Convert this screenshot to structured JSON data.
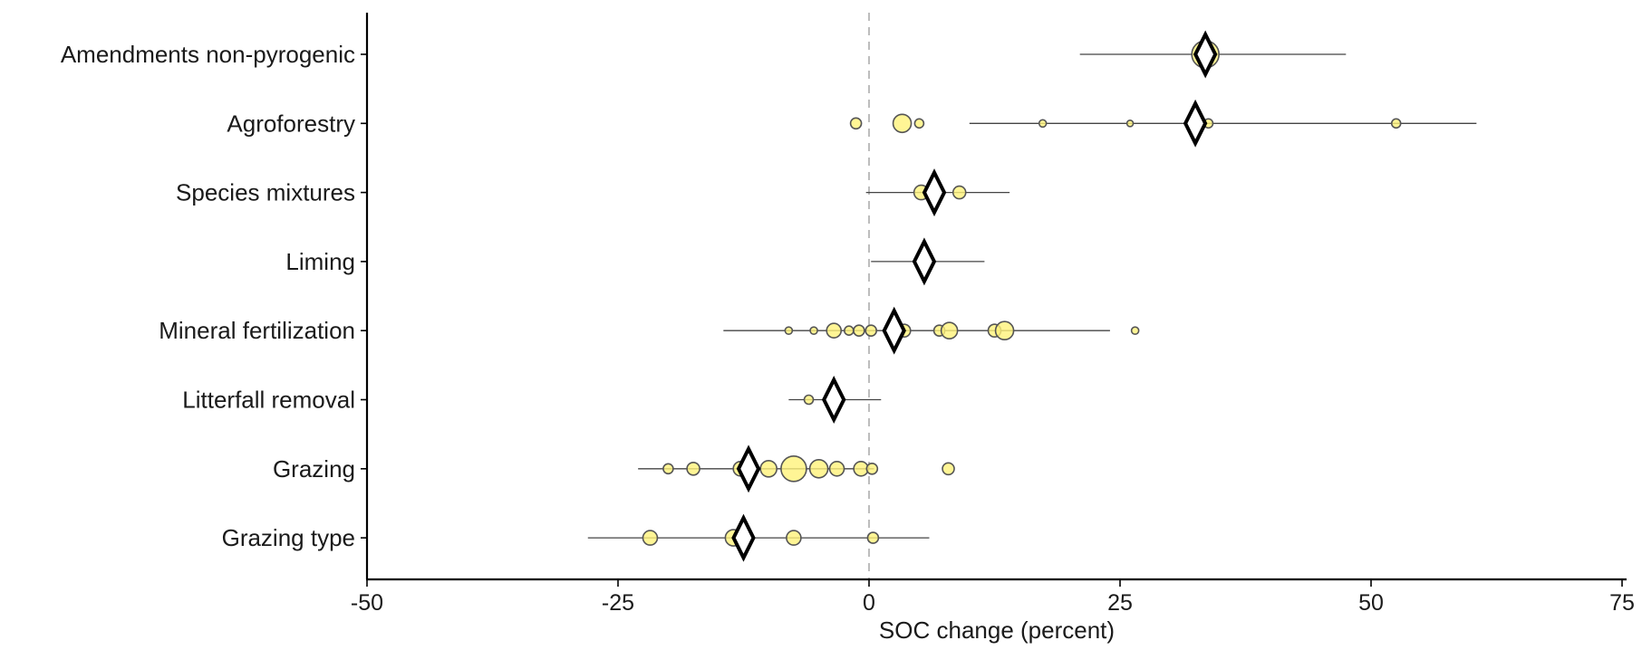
{
  "chart_data": {
    "type": "scatter",
    "title": "",
    "xlabel": "SOC change (percent)",
    "ylabel": "",
    "xlim": [
      -50,
      75
    ],
    "xticks": [
      -50,
      -25,
      0,
      25,
      50,
      75
    ],
    "xtick_labels": [
      "-50",
      "-25",
      "0",
      "25",
      "50",
      "75"
    ],
    "reference_line_x": 0,
    "grid": false,
    "legend": "none",
    "point_color": "#fff27a",
    "point_stroke": "#555555",
    "categories": [
      "Amendments non-pyrogenic",
      "Agroforestry",
      "Species mixtures",
      "Liming",
      "Mineral fertilization",
      "Litterfall removal",
      "Grazing",
      "Grazing type"
    ],
    "summary": [
      {
        "category": "Amendments non-pyrogenic",
        "mean": 33.5,
        "ci": [
          21,
          47.5
        ]
      },
      {
        "category": "Agroforestry",
        "mean": 32.5,
        "ci": [
          10,
          60.5
        ]
      },
      {
        "category": "Species mixtures",
        "mean": 6.5,
        "ci": [
          -0.3,
          14
        ]
      },
      {
        "category": "Liming",
        "mean": 5.5,
        "ci": [
          0.2,
          11.5
        ]
      },
      {
        "category": "Mineral fertilization",
        "mean": 2.5,
        "ci": [
          -14.5,
          24
        ]
      },
      {
        "category": "Litterfall removal",
        "mean": -3.5,
        "ci": [
          -8,
          1.2
        ]
      },
      {
        "category": "Grazing",
        "mean": -12,
        "ci": [
          -23,
          0.5
        ]
      },
      {
        "category": "Grazing type",
        "mean": -12.5,
        "ci": [
          -28,
          6
        ]
      }
    ],
    "studies": [
      {
        "category": "Amendments non-pyrogenic",
        "points": [
          {
            "x": 33.5,
            "size": 15
          }
        ]
      },
      {
        "category": "Agroforestry",
        "points": [
          {
            "x": -1.3,
            "size": 6
          },
          {
            "x": 3.3,
            "size": 10
          },
          {
            "x": 5,
            "size": 5
          },
          {
            "x": 17.3,
            "size": 4
          },
          {
            "x": 26,
            "size": 3.5
          },
          {
            "x": 33.8,
            "size": 5
          },
          {
            "x": 52.5,
            "size": 5
          }
        ]
      },
      {
        "category": "Species mixtures",
        "points": [
          {
            "x": 5.2,
            "size": 8
          },
          {
            "x": 9,
            "size": 7
          }
        ]
      },
      {
        "category": "Liming",
        "points": [
          {
            "x": 5.7,
            "size": 7
          }
        ]
      },
      {
        "category": "Mineral fertilization",
        "points": [
          {
            "x": -8,
            "size": 4
          },
          {
            "x": -5.5,
            "size": 4
          },
          {
            "x": -3.5,
            "size": 8
          },
          {
            "x": -2,
            "size": 5
          },
          {
            "x": -1,
            "size": 6
          },
          {
            "x": 0.2,
            "size": 6
          },
          {
            "x": 3.5,
            "size": 7
          },
          {
            "x": 7,
            "size": 6
          },
          {
            "x": 8,
            "size": 9
          },
          {
            "x": 12.5,
            "size": 7
          },
          {
            "x": 13.5,
            "size": 10
          },
          {
            "x": 26.5,
            "size": 4
          }
        ]
      },
      {
        "category": "Litterfall removal",
        "points": [
          {
            "x": -6,
            "size": 5
          },
          {
            "x": -3,
            "size": 4
          }
        ]
      },
      {
        "category": "Grazing",
        "points": [
          {
            "x": -20,
            "size": 5.5
          },
          {
            "x": -17.5,
            "size": 7
          },
          {
            "x": -12.8,
            "size": 8
          },
          {
            "x": -10,
            "size": 9
          },
          {
            "x": -7.5,
            "size": 14
          },
          {
            "x": -5,
            "size": 10
          },
          {
            "x": -3.2,
            "size": 8
          },
          {
            "x": -0.8,
            "size": 8
          },
          {
            "x": 0.3,
            "size": 6
          },
          {
            "x": 7.9,
            "size": 6.5
          }
        ]
      },
      {
        "category": "Grazing type",
        "points": [
          {
            "x": -21.8,
            "size": 8
          },
          {
            "x": -13.5,
            "size": 9
          },
          {
            "x": -7.5,
            "size": 8
          },
          {
            "x": 0.4,
            "size": 6
          }
        ]
      }
    ]
  }
}
